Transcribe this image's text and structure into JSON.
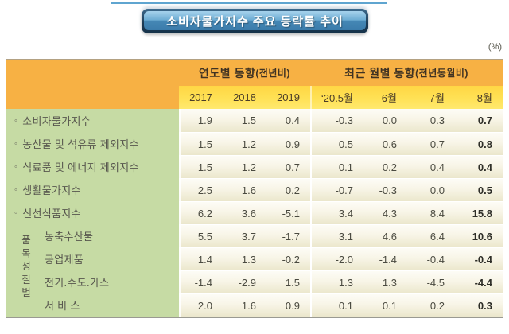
{
  "title_bar": {
    "text": "소비자물가지수 주요 등락률 추이"
  },
  "page": {
    "unit": "(%)"
  },
  "table": {
    "group_headers": [
      {
        "title": "연도별 동향",
        "subtitle": "(전년비)"
      },
      {
        "title": "최근 월별 동향",
        "subtitle": "(전년동월비)"
      }
    ],
    "column_headers": [
      "2017",
      "2018",
      "2019",
      "‘20.5월",
      "6월",
      "7월",
      "8월"
    ],
    "row_group": {
      "label": "품목성질별",
      "vertical_text": "품\n목\n성\n질\n별"
    },
    "rows": [
      {
        "bullet": "◦",
        "label": "소비자물가지수",
        "values": [
          "1.9",
          "1.5",
          "0.4",
          "-0.3",
          "0.0",
          "0.3",
          "0.7"
        ]
      },
      {
        "bullet": "◦",
        "label": "농산물 및 석유류 제외지수",
        "values": [
          "1.5",
          "1.2",
          "0.9",
          "0.5",
          "0.6",
          "0.7",
          "0.8"
        ]
      },
      {
        "bullet": "◦",
        "label": "식료품 및 에너지 제외지수",
        "values": [
          "1.5",
          "1.2",
          "0.7",
          "0.1",
          "0.2",
          "0.4",
          "0.4"
        ]
      },
      {
        "bullet": "◦",
        "label": "생활물가지수",
        "values": [
          "2.5",
          "1.6",
          "0.2",
          "-0.7",
          "-0.3",
          "0.0",
          "0.5"
        ]
      },
      {
        "bullet": "◦",
        "label": "신선식품지수",
        "values": [
          "6.2",
          "3.6",
          "-5.1",
          "3.4",
          "4.3",
          "8.4",
          "15.8"
        ]
      },
      {
        "label": "농축수산물",
        "values": [
          "5.5",
          "3.7",
          "-1.7",
          "3.1",
          "4.6",
          "6.4",
          "10.6"
        ]
      },
      {
        "label": "공업제품",
        "values": [
          "1.4",
          "1.3",
          "-0.2",
          "-2.0",
          "-1.4",
          "-0.4",
          "-0.4"
        ]
      },
      {
        "label": "전기.수도.가스",
        "values": [
          "-1.4",
          "-2.9",
          "1.5",
          "1.3",
          "1.3",
          "-4.5",
          "-4.4"
        ]
      },
      {
        "label": "서 비 스",
        "values": [
          "2.0",
          "1.6",
          "0.9",
          "0.1",
          "0.1",
          "0.2",
          "0.3"
        ]
      }
    ]
  },
  "colors": {
    "header_orange": "#F7B144",
    "subheader_yellow": "#FFE155",
    "label_green": "#C6DBA4",
    "title_navy": "#1C3A54",
    "title_blue": "#6FAED4",
    "cell_cream": "#F3F0DE"
  }
}
